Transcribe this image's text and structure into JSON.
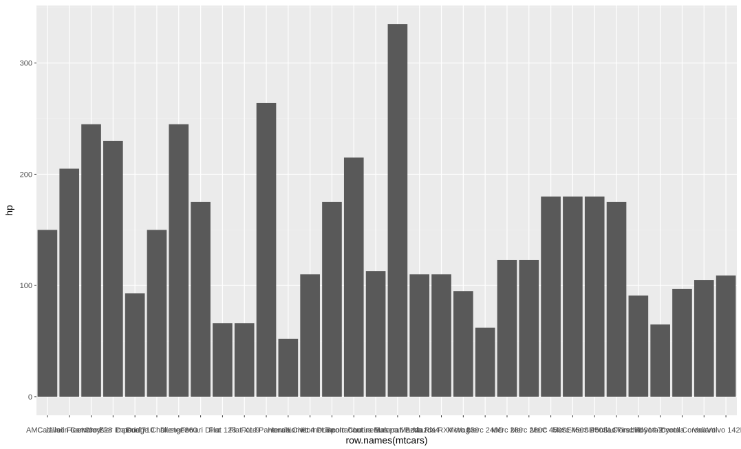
{
  "chart_data": {
    "type": "bar",
    "title": "",
    "xlabel": "row.names(mtcars)",
    "ylabel": "hp",
    "ylim": [
      -16.75,
      351.75
    ],
    "y_ticks": [
      0,
      100,
      200,
      300
    ],
    "grid": true,
    "legend": "none",
    "categories": [
      "AMC Javelin",
      "Cadillac Fleetwood",
      "Camaro Z28",
      "Chrysler Imperial",
      "Datsun 710",
      "Dodge Challenger",
      "Duster 360",
      "Ferrari Dino",
      "Fiat 128",
      "Fiat X1-9",
      "Ford Pantera L",
      "Honda Civic",
      "Hornet 4 Drive",
      "Hornet Sportabout",
      "Lincoln Continental",
      "Lotus Europa",
      "Maserati Bora",
      "Mazda RX4",
      "Mazda RX4 Wag",
      "Merc 230",
      "Merc 240D",
      "Merc 280",
      "Merc 280C",
      "Merc 450SE",
      "Merc 450SL",
      "Merc 450SLC",
      "Pontiac Firebird",
      "Porsche 914-2",
      "Toyota Corolla",
      "Toyota Corona",
      "Valiant",
      "Volvo 142E"
    ],
    "values": [
      150,
      205,
      245,
      230,
      93,
      150,
      245,
      175,
      66,
      66,
      264,
      52,
      110,
      175,
      215,
      113,
      335,
      110,
      110,
      95,
      62,
      123,
      123,
      180,
      180,
      180,
      175,
      91,
      65,
      97,
      105,
      109
    ]
  },
  "colors": {
    "panel_background": "#ebebeb",
    "grid_major": "#ffffff",
    "grid_minor": "#f2f2f2",
    "bar_fill": "#595959",
    "tick_text": "#4d4d4d",
    "axis_ticks": "#333333"
  }
}
